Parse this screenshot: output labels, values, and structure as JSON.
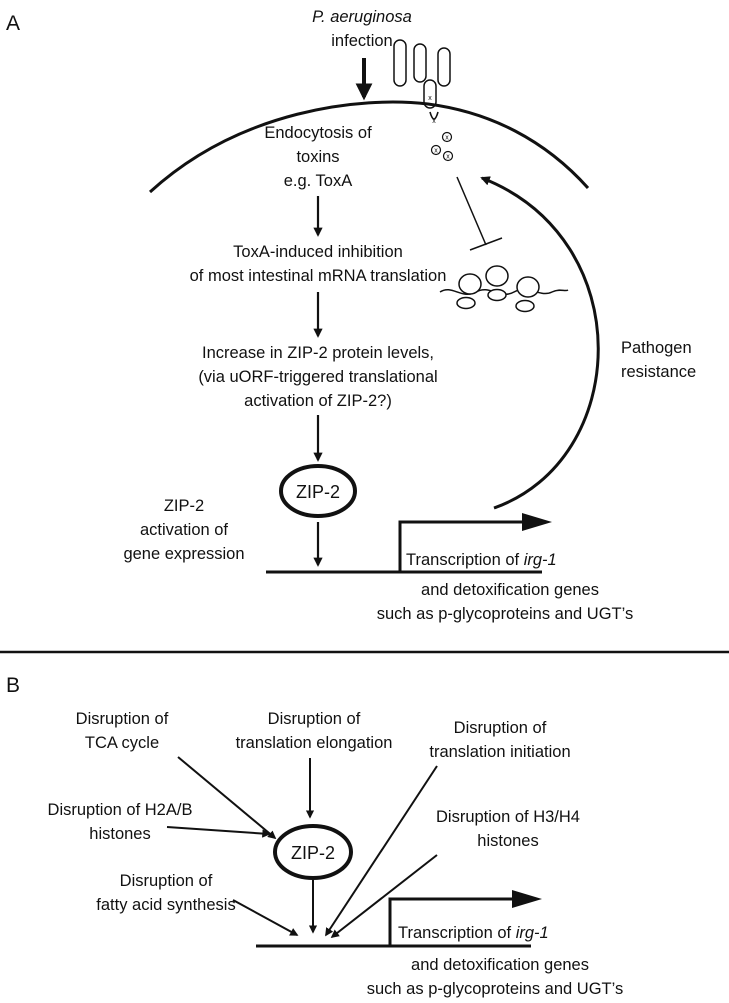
{
  "panel_a": {
    "letter": "A",
    "infection_line1": "P. aeruginosa",
    "infection_line2": "infection",
    "endocytosis_line1": "Endocytosis of",
    "endocytosis_line2": "toxins",
    "endocytosis_line3": "e.g. ToxA",
    "inhibition_line1": "ToxA-induced inhibition",
    "inhibition_line2": "of most intestinal mRNA translation",
    "increase_line1": "Increase in ZIP-2 protein levels,",
    "increase_line2": "(via uORF-triggered translational",
    "increase_line3": "activation of ZIP-2?)",
    "zip2": "ZIP-2",
    "activation_line1": "ZIP-2",
    "activation_line2": "activation of",
    "activation_line3": "gene expression",
    "transcription_prefix": "Transcription of ",
    "transcription_gene": "irg-1",
    "detox_line1": "and detoxification genes",
    "detox_line2": "such as p-glycoproteins and UGT’s",
    "resistance_line1": "Pathogen",
    "resistance_line2": "resistance",
    "toxin_mark": "x"
  },
  "panel_b": {
    "letter": "B",
    "tca_line1": "Disruption of",
    "tca_line2": "TCA cycle",
    "elong_line1": "Disruption of",
    "elong_line2": "translation elongation",
    "init_line1": "Disruption of",
    "init_line2": "translation initiation",
    "h2ab_line1": "Disruption of H2A/B",
    "h2ab_line2": "histones",
    "h3h4_line1": "Disruption of H3/H4",
    "h3h4_line2": "histones",
    "zip2": "ZIP-2",
    "fatty_line1": "Disruption of",
    "fatty_line2": "fatty acid synthesis",
    "transcription_prefix": "Transcription of ",
    "transcription_gene": "irg-1",
    "detox_line1": "and detoxification genes",
    "detox_line2": "such as p-glycoproteins and UGT’s"
  }
}
